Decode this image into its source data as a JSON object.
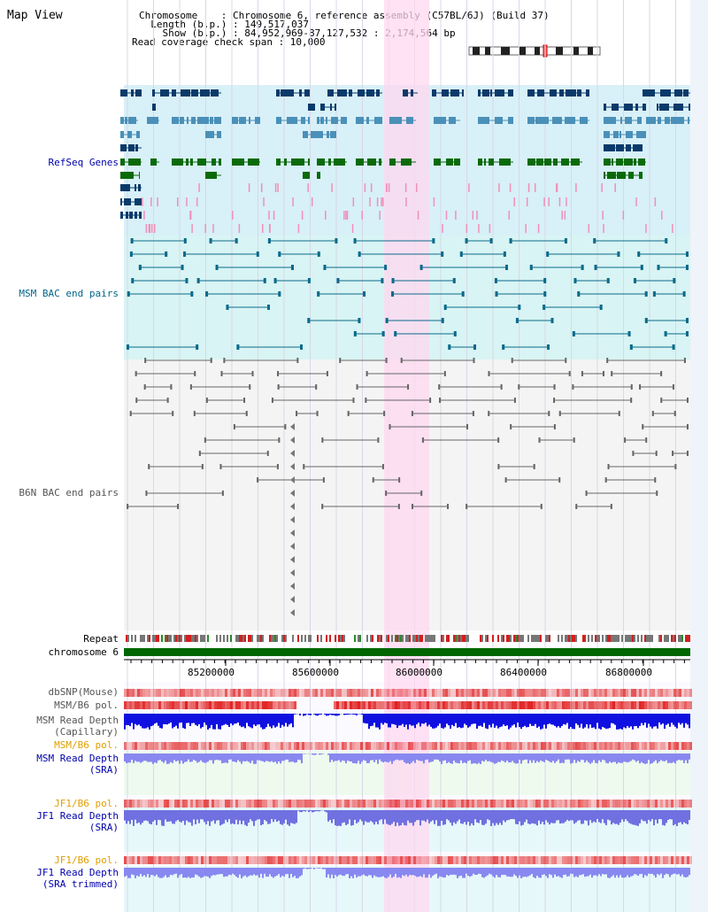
{
  "title": "Map View",
  "header": {
    "lines": [
      "Chromosome    : Chromosome 6, reference assembly (C57BL/6J) (Build 37)",
      "  Length (b.p.) : 149,517,037",
      "    Show (b.p.) : 84,952,969-87,127,532 : 2,174,564 bp",
      "Read coverage check span : 10,000"
    ]
  },
  "tracks": {
    "refseq": "RefSeq Genes",
    "msm_bac": "MSM BAC end pairs",
    "b6n_bac": "B6N BAC end pairs",
    "repeat": "Repeat",
    "chromosome": "chromosome 6",
    "dbsnp": "dbSNP(Mouse)",
    "msm_b6_pol_1": "MSM/B6 pol.",
    "msm_depth_cap_1": "MSM Read Depth",
    "msm_depth_cap_2": "(Capillary)",
    "msm_b6_pol_2": "MSM/B6 pol.",
    "msm_depth_sra_1": "MSM Read Depth",
    "msm_depth_sra_2": "(SRA)",
    "jf1_b6_pol_1": "JF1/B6 pol.",
    "jf1_depth_sra_1": "JF1 Read Depth",
    "jf1_depth_sra_2": "(SRA)",
    "jf1_b6_pol_2": "JF1/B6 pol.",
    "jf1_depth_trim_1": "JF1 Read Depth",
    "jf1_depth_trim_2": "(SRA trimmed)"
  },
  "axis": {
    "ticks": [
      "85200000",
      "85600000",
      "86000000",
      "86400000",
      "86800000"
    ]
  },
  "colors": {
    "refseq_bg": "#d8f0f8",
    "msm_bg": "#d8f4f4",
    "b6n_bg": "#f4f4f4",
    "highlight": "#ffd8f0",
    "refseq_label": "#0000aa",
    "msm_label": "#006688",
    "b6n_label": "#555555",
    "pol_label": "#e0a000",
    "depth_label": "#0000aa",
    "chrom_green": "#006600"
  }
}
